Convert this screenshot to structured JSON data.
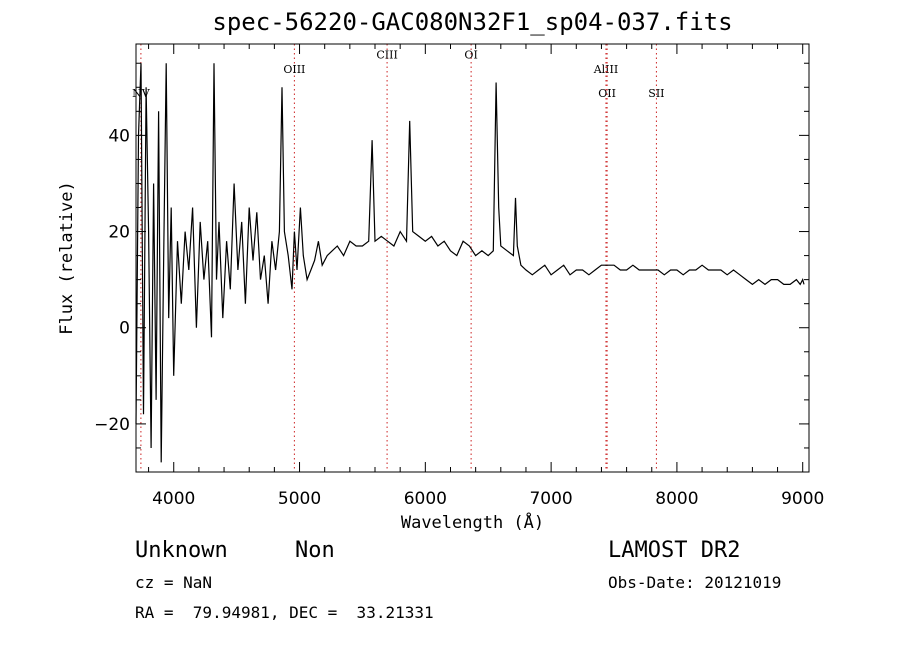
{
  "header": {
    "title": "spec-56220-GAC080N32F1_sp04-037.fits"
  },
  "chart_data": {
    "type": "line",
    "title": "spec-56220-GAC080N32F1_sp04-037.fits",
    "xlabel": "Wavelength (Å)",
    "ylabel": "Flux (relative)",
    "xlim": [
      3700,
      9050
    ],
    "ylim": [
      -30,
      59
    ],
    "x_ticks": [
      4000,
      5000,
      6000,
      7000,
      8000,
      9000
    ],
    "x_tick_labels": [
      "4000",
      "5000",
      "6000",
      "7000",
      "8000",
      "9000"
    ],
    "y_ticks": [
      -20,
      0,
      20,
      40
    ],
    "y_tick_labels": [
      "−20",
      "0",
      "20",
      "40"
    ],
    "grid": false,
    "series": [
      {
        "x": [
          3700,
          3720,
          3740,
          3760,
          3780,
          3800,
          3820,
          3840,
          3860,
          3880,
          3900,
          3920,
          3940,
          3960,
          3980,
          4000,
          4030,
          4060,
          4090,
          4120,
          4150,
          4180,
          4210,
          4240,
          4270,
          4300,
          4320,
          4340,
          4360,
          4390,
          4420,
          4450,
          4480,
          4510,
          4540,
          4570,
          4600,
          4630,
          4660,
          4690,
          4720,
          4750,
          4780,
          4810,
          4840,
          4861,
          4880,
          4910,
          4940,
          4959,
          4980,
          5007,
          5030,
          5060,
          5090,
          5120,
          5150,
          5180,
          5220,
          5260,
          5300,
          5350,
          5400,
          5450,
          5500,
          5550,
          5577,
          5600,
          5650,
          5700,
          5750,
          5800,
          5850,
          5876,
          5900,
          5950,
          6000,
          6050,
          6100,
          6150,
          6200,
          6250,
          6300,
          6350,
          6400,
          6450,
          6500,
          6540,
          6563,
          6583,
          6600,
          6650,
          6700,
          6717,
          6731,
          6760,
          6800,
          6850,
          6900,
          6950,
          7000,
          7050,
          7100,
          7150,
          7200,
          7250,
          7300,
          7350,
          7400,
          7450,
          7500,
          7550,
          7600,
          7650,
          7700,
          7750,
          7800,
          7850,
          7900,
          7950,
          8000,
          8050,
          8100,
          8150,
          8200,
          8250,
          8300,
          8350,
          8400,
          8450,
          8500,
          8550,
          8600,
          8650,
          8700,
          8750,
          8800,
          8850,
          8900,
          8950,
          8980,
          9000,
          9010
        ],
        "y": [
          -20,
          40,
          55,
          -18,
          50,
          20,
          -25,
          30,
          -15,
          45,
          -28,
          15,
          55,
          2,
          25,
          -10,
          18,
          5,
          20,
          12,
          25,
          0,
          22,
          10,
          18,
          -2,
          55,
          10,
          22,
          2,
          18,
          8,
          30,
          12,
          22,
          5,
          25,
          14,
          24,
          10,
          15,
          5,
          18,
          12,
          20,
          50,
          20,
          15,
          8,
          20,
          12,
          25,
          15,
          10,
          12,
          14,
          18,
          13,
          15,
          16,
          17,
          15,
          18,
          17,
          17,
          18,
          39,
          18,
          19,
          18,
          17,
          20,
          18,
          43,
          20,
          19,
          18,
          19,
          17,
          18,
          16,
          15,
          18,
          17,
          15,
          16,
          15,
          16,
          51,
          25,
          17,
          16,
          15,
          27,
          17,
          13,
          12,
          11,
          12,
          13,
          11,
          12,
          13,
          11,
          12,
          12,
          11,
          12,
          13,
          13,
          13,
          12,
          12,
          13,
          12,
          12,
          12,
          12,
          11,
          12,
          12,
          11,
          12,
          12,
          13,
          12,
          12,
          12,
          11,
          12,
          11,
          10,
          9,
          10,
          9,
          10,
          10,
          9,
          9,
          10,
          9,
          10,
          9
        ]
      }
    ],
    "line_markers": [
      {
        "label": "NV",
        "x": 3739,
        "label_y": 48,
        "color": "#cc2222"
      },
      {
        "label": "OIII",
        "x": 4959,
        "label_y": 53,
        "color": "#cc2222"
      },
      {
        "label": "CIII",
        "x": 5696,
        "label_y": 56,
        "color": "#cc2222"
      },
      {
        "label": "OI",
        "x": 6364,
        "label_y": 56,
        "color": "#cc2222"
      },
      {
        "label": "AlIII",
        "x": 7436,
        "label_y": 53,
        "color": "#cc2222"
      },
      {
        "label": "OII",
        "x": 7445,
        "label_y": 48,
        "color": "#cc2222"
      },
      {
        "label": "SII",
        "x": 7837,
        "label_y": 48,
        "color": "#cc2222"
      }
    ]
  },
  "info": {
    "class": "Unknown",
    "subclass": "Non",
    "survey": "LAMOST DR2",
    "cz": "cz = NaN",
    "obs_date": "Obs-Date: 20121019",
    "radec": "RA =  79.94981, DEC =  33.21331"
  }
}
